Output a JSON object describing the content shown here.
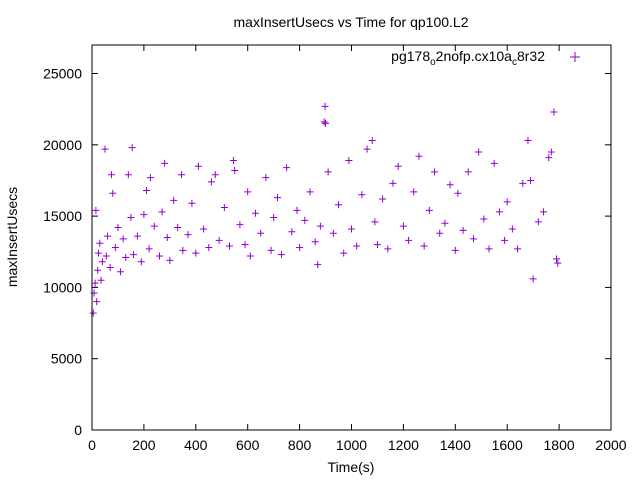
{
  "chart_data": {
    "type": "scatter",
    "title": "maxInsertUsecs vs Time for qp100.L2",
    "xlabel": "Time(s)",
    "ylabel": "maxInsertUsecs",
    "xlim": [
      0,
      2000
    ],
    "ylim": [
      0,
      27000
    ],
    "x_ticks": [
      0,
      200,
      400,
      600,
      800,
      1000,
      1200,
      1400,
      1600,
      1800,
      2000
    ],
    "y_ticks": [
      0,
      5000,
      10000,
      15000,
      20000,
      25000
    ],
    "x_tick_labels": [
      "0",
      "200",
      "400",
      "600",
      "800",
      "1000",
      "1200",
      "1400",
      "1600",
      "1800",
      "2000"
    ],
    "y_tick_labels": [
      "0",
      "5000",
      "10000",
      "15000",
      "20000",
      "25000"
    ],
    "grid": false,
    "legend_position": "top-right",
    "marker": "plus",
    "series": [
      {
        "name": "pg178_o2nofp.cx10a_c8r32",
        "legend": {
          "base": "pg178",
          "sub1": "o",
          "mid": "2nofp.cx10a",
          "sub2": "c",
          "end": "8r32"
        },
        "color": "#9400d3",
        "points": [
          [
            5,
            8200
          ],
          [
            8,
            9600
          ],
          [
            12,
            10300
          ],
          [
            15,
            15400
          ],
          [
            18,
            9000
          ],
          [
            22,
            11200
          ],
          [
            25,
            12400
          ],
          [
            30,
            13100
          ],
          [
            35,
            10500
          ],
          [
            40,
            11800
          ],
          [
            50,
            19700
          ],
          [
            55,
            12200
          ],
          [
            60,
            13600
          ],
          [
            70,
            11400
          ],
          [
            75,
            17900
          ],
          [
            80,
            16600
          ],
          [
            90,
            12800
          ],
          [
            100,
            14200
          ],
          [
            110,
            11100
          ],
          [
            120,
            13400
          ],
          [
            130,
            12100
          ],
          [
            140,
            17900
          ],
          [
            150,
            14900
          ],
          [
            155,
            19800
          ],
          [
            160,
            12300
          ],
          [
            175,
            13600
          ],
          [
            190,
            11800
          ],
          [
            200,
            15100
          ],
          [
            210,
            16800
          ],
          [
            220,
            12700
          ],
          [
            225,
            17700
          ],
          [
            240,
            14300
          ],
          [
            260,
            12200
          ],
          [
            270,
            15300
          ],
          [
            280,
            18700
          ],
          [
            290,
            13500
          ],
          [
            300,
            11900
          ],
          [
            315,
            16100
          ],
          [
            330,
            14200
          ],
          [
            345,
            17900
          ],
          [
            350,
            12600
          ],
          [
            370,
            13700
          ],
          [
            385,
            15900
          ],
          [
            400,
            12400
          ],
          [
            410,
            18500
          ],
          [
            430,
            14100
          ],
          [
            450,
            12800
          ],
          [
            460,
            17400
          ],
          [
            475,
            17900
          ],
          [
            490,
            13300
          ],
          [
            510,
            15600
          ],
          [
            530,
            12900
          ],
          [
            545,
            18900
          ],
          [
            550,
            18200
          ],
          [
            570,
            14400
          ],
          [
            590,
            13000
          ],
          [
            600,
            16700
          ],
          [
            610,
            12200
          ],
          [
            630,
            15200
          ],
          [
            650,
            13800
          ],
          [
            670,
            17700
          ],
          [
            690,
            12600
          ],
          [
            700,
            14900
          ],
          [
            715,
            16300
          ],
          [
            730,
            12300
          ],
          [
            750,
            18400
          ],
          [
            770,
            13900
          ],
          [
            790,
            15400
          ],
          [
            800,
            12800
          ],
          [
            820,
            14700
          ],
          [
            840,
            16700
          ],
          [
            860,
            13200
          ],
          [
            870,
            11600
          ],
          [
            880,
            14300
          ],
          [
            895,
            21600
          ],
          [
            898,
            22700
          ],
          [
            900,
            21500
          ],
          [
            910,
            18100
          ],
          [
            930,
            13800
          ],
          [
            950,
            15800
          ],
          [
            970,
            12400
          ],
          [
            990,
            18900
          ],
          [
            1000,
            14100
          ],
          [
            1020,
            12900
          ],
          [
            1040,
            16500
          ],
          [
            1060,
            19700
          ],
          [
            1080,
            20300
          ],
          [
            1090,
            14600
          ],
          [
            1100,
            13000
          ],
          [
            1120,
            16200
          ],
          [
            1140,
            12700
          ],
          [
            1160,
            17300
          ],
          [
            1180,
            18500
          ],
          [
            1200,
            14300
          ],
          [
            1220,
            13300
          ],
          [
            1240,
            16700
          ],
          [
            1260,
            19200
          ],
          [
            1280,
            12900
          ],
          [
            1300,
            15400
          ],
          [
            1320,
            18100
          ],
          [
            1340,
            13800
          ],
          [
            1360,
            14500
          ],
          [
            1380,
            17200
          ],
          [
            1400,
            12600
          ],
          [
            1410,
            16600
          ],
          [
            1430,
            14000
          ],
          [
            1450,
            18100
          ],
          [
            1470,
            13400
          ],
          [
            1490,
            19500
          ],
          [
            1510,
            14800
          ],
          [
            1530,
            12700
          ],
          [
            1550,
            18700
          ],
          [
            1570,
            15300
          ],
          [
            1590,
            13300
          ],
          [
            1600,
            16000
          ],
          [
            1620,
            14100
          ],
          [
            1640,
            12700
          ],
          [
            1660,
            17300
          ],
          [
            1680,
            20300
          ],
          [
            1690,
            17500
          ],
          [
            1700,
            10600
          ],
          [
            1720,
            14600
          ],
          [
            1740,
            15300
          ],
          [
            1760,
            19100
          ],
          [
            1770,
            19500
          ],
          [
            1780,
            22300
          ],
          [
            1790,
            12000
          ],
          [
            1795,
            11700
          ]
        ]
      }
    ]
  }
}
